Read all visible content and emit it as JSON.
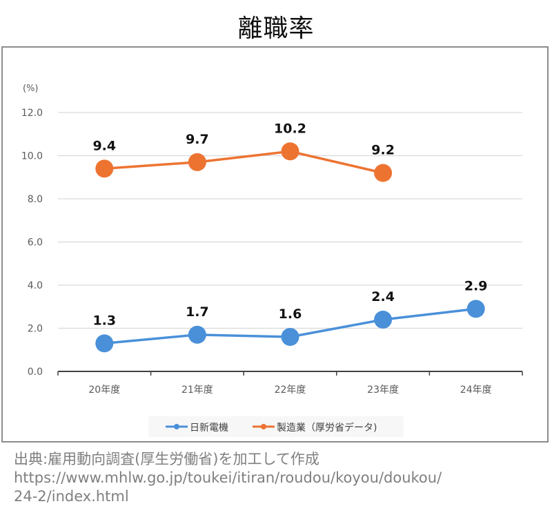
{
  "chart_data": {
    "type": "line",
    "title": "離職率",
    "ylabel": "(%)",
    "xlabel": "",
    "categories": [
      "20年度",
      "21年度",
      "22年度",
      "23年度",
      "24年度"
    ],
    "ylim": [
      0,
      12
    ],
    "yticks": [
      "0.0",
      "2.0",
      "4.0",
      "6.0",
      "8.0",
      "10.0",
      "12.0"
    ],
    "grid": true,
    "legend_position": "bottom",
    "series": [
      {
        "name": "日新電機",
        "color": "#4a90d9",
        "values": [
          1.3,
          1.7,
          1.6,
          2.4,
          2.9
        ],
        "labels": [
          "1.3",
          "1.7",
          "1.6",
          "2.4",
          "2.9"
        ]
      },
      {
        "name": "製造業（厚労省データ)",
        "color": "#ed7331",
        "values": [
          9.4,
          9.7,
          10.2,
          9.2,
          null
        ],
        "labels": [
          "9.4",
          "9.7",
          "10.2",
          "9.2",
          null
        ]
      }
    ]
  },
  "source": {
    "line1": "出典:雇用動向調査(厚生労働省)を加工して作成",
    "line2": "https://www.mhlw.go.jp/toukei/itiran/roudou/koyou/doukou/",
    "line3": "24-2/index.html"
  }
}
